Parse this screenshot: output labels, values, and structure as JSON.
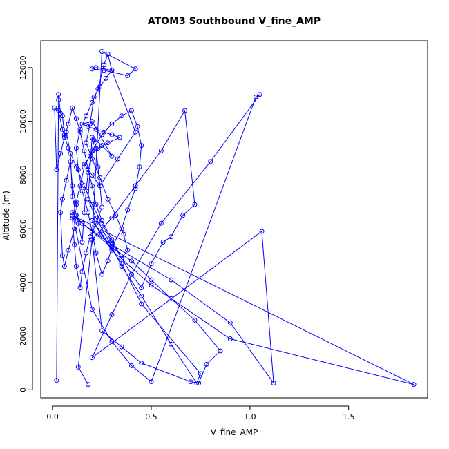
{
  "chart_data": {
    "type": "line",
    "title": "ATOM3 Southbound V_fine_AMP",
    "xlabel": "V_fine_AMP",
    "ylabel": "Altitude (m)",
    "xlim": [
      -0.06,
      1.9
    ],
    "ylim": [
      -300,
      13000
    ],
    "x_ticks": [
      0,
      0.5,
      1.0,
      1.5
    ],
    "x_tick_labels": [
      "0.0",
      "0.5",
      "1.0",
      "1.5"
    ],
    "y_ticks": [
      0,
      2000,
      4000,
      6000,
      8000,
      10000,
      12000
    ],
    "y_tick_labels": [
      "0",
      "2000",
      "4000",
      "6000",
      "8000",
      "10000",
      "12000"
    ],
    "grid": false,
    "markers": "open-circle",
    "line_color": "#0000ff",
    "series": [
      {
        "x": [
          0.02,
          0.03,
          0.03,
          0.04,
          0.05,
          0.06,
          0.07,
          0.09,
          0.1,
          0.12,
          0.11,
          0.08,
          0.06,
          0.05,
          0.04,
          0.05,
          0.07,
          0.09,
          0.1,
          0.12,
          0.13,
          0.15,
          0.16,
          0.17,
          0.18,
          0.2,
          0.21,
          0.22,
          0.23,
          0.24,
          0.25,
          0.22,
          0.19,
          0.17,
          0.15,
          0.14,
          0.12,
          0.11,
          0.1,
          0.12,
          0.14,
          0.16,
          0.2,
          0.25,
          0.3,
          0.35,
          0.4,
          0.43,
          0.45,
          0.44,
          0.42,
          0.38,
          0.35,
          0.3,
          0.28,
          0.25,
          0.22,
          0.2,
          0.18,
          0.15,
          0.13,
          0.12,
          0.14,
          0.17,
          0.2,
          0.23,
          0.26,
          0.28,
          0.3,
          0.27,
          0.24,
          0.21,
          0.19,
          0.17,
          0.2,
          0.24,
          0.28,
          0.32,
          0.36,
          0.38,
          0.35,
          0.3,
          0.25,
          0.22,
          0.2,
          0.18,
          0.16,
          0.14,
          0.12,
          0.1,
          0.08,
          0.06,
          0.04,
          0.02,
          0.01,
          0.03,
          0.05,
          0.08,
          0.12,
          0.16,
          0.2,
          0.25,
          0.3,
          0.35,
          0.4,
          0.45,
          0.5,
          0.56,
          0.6,
          0.66,
          0.72,
          0.67,
          0.55,
          0.42,
          0.3,
          0.2,
          0.25,
          0.35,
          0.45,
          0.7,
          0.74,
          0.78,
          0.85,
          0.72,
          0.6,
          0.5,
          0.4,
          0.3,
          0.2,
          0.15,
          0.1,
          0.2,
          0.3,
          0.4,
          0.5,
          1.03,
          1.05,
          0.8,
          0.55,
          0.4,
          0.3,
          0.2,
          1.06,
          1.12,
          0.9,
          0.6,
          0.3,
          0.15,
          0.1,
          1.83,
          0.9,
          0.5,
          0.3,
          0.2,
          0.25,
          0.35,
          0.45,
          0.75,
          0.73,
          0.6,
          0.45,
          0.35,
          0.28,
          0.22,
          0.18,
          0.2,
          0.25,
          0.3,
          0.2,
          0.15,
          0.18,
          0.22,
          0.26,
          0.3,
          0.34,
          0.28,
          0.23,
          0.19,
          0.16,
          0.2,
          0.24,
          0.33,
          0.42,
          0.3,
          0.22,
          0.2,
          0.26,
          0.38,
          0.42,
          0.25,
          0.2,
          0.13,
          0.18
        ],
        "y": [
          350,
          10800,
          11000,
          10300,
          10200,
          9500,
          9600,
          8800,
          7200,
          6500,
          6000,
          5200,
          4600,
          5000,
          6600,
          7100,
          7800,
          8500,
          7600,
          6900,
          6200,
          5500,
          6600,
          7400,
          8100,
          8900,
          9300,
          9000,
          8300,
          7600,
          6800,
          6200,
          5700,
          5100,
          4400,
          3800,
          4600,
          5400,
          6400,
          7000,
          7600,
          8300,
          8900,
          9500,
          9900,
          10200,
          10400,
          9800,
          9100,
          8300,
          7500,
          6700,
          6000,
          5300,
          4800,
          4300,
          5100,
          5900,
          6600,
          7400,
          8200,
          9000,
          9700,
          10200,
          10700,
          11200,
          12100,
          12500,
          11900,
          11600,
          11300,
          10900,
          9900,
          9200,
          8600,
          7900,
          7100,
          6500,
          5800,
          5200,
          4900,
          5600,
          6300,
          6900,
          7600,
          8200,
          8900,
          9600,
          10100,
          10500,
          9900,
          9400,
          8800,
          8200,
          10500,
          10400,
          9700,
          9000,
          8300,
          7600,
          6900,
          6200,
          5500,
          4900,
          4300,
          3800,
          4700,
          5500,
          5700,
          6500,
          6900,
          10400,
          8900,
          7600,
          6400,
          5600,
          2200,
          1600,
          1000,
          300,
          250,
          950,
          1450,
          2600,
          3400,
          4100,
          4800,
          5300,
          5900,
          6200,
          6600,
          3000,
          1800,
          900,
          300,
          10900,
          11000,
          8500,
          6200,
          4300,
          2800,
          1200,
          5900,
          250,
          2500,
          4100,
          5400,
          6200,
          6500,
          200,
          1900,
          3900,
          5200,
          6300,
          5800,
          4700,
          3200,
          600,
          250,
          1700,
          3500,
          4600,
          5600,
          6400,
          7100,
          9400,
          9100,
          8700,
          10000,
          9900,
          9800,
          9700,
          9600,
          9500,
          9400,
          9200,
          9000,
          8700,
          8400,
          8000,
          7600,
          8600,
          9600,
          11900,
          12000,
          11950,
          11900,
          11700,
          11950,
          12600,
          5600,
          850,
          200
        ]
      }
    ]
  }
}
